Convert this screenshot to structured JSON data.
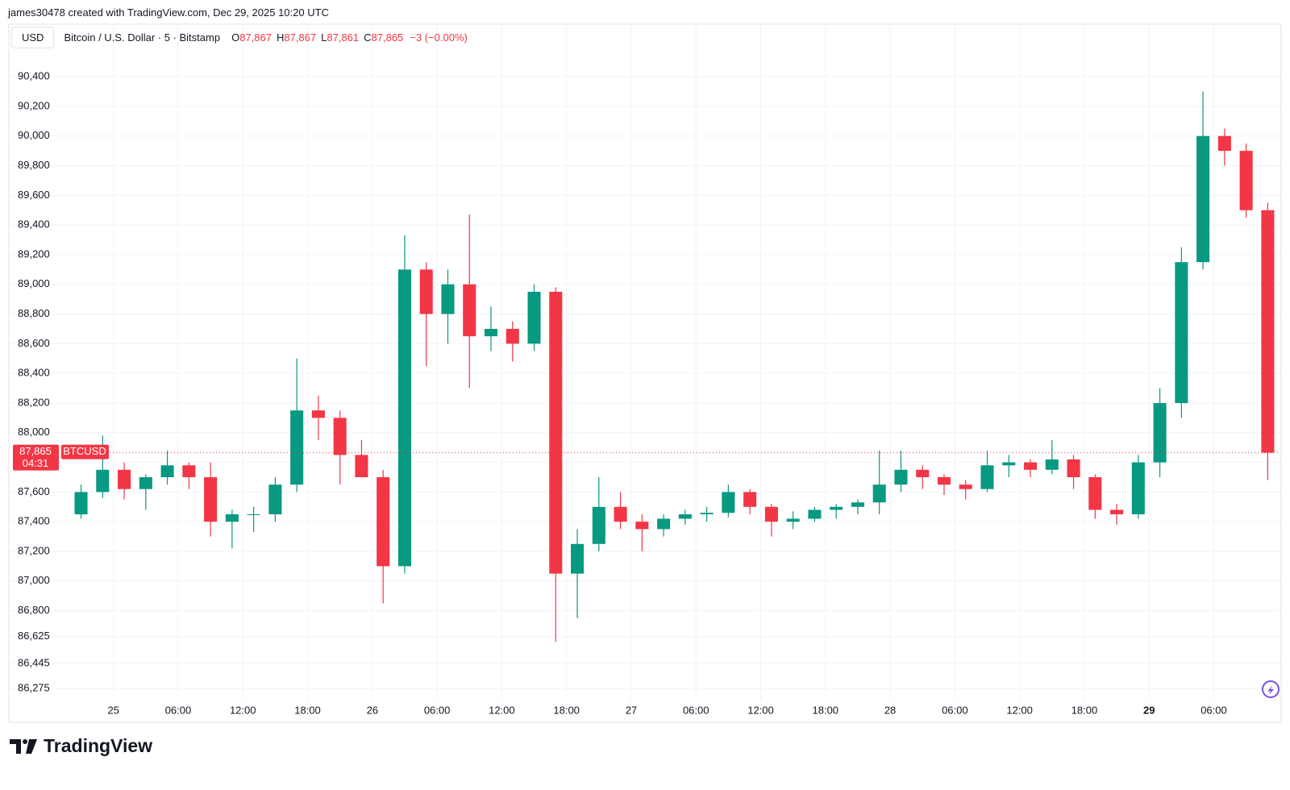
{
  "header": {
    "attribution": "james30478 created with TradingView.com, Dec 29, 2025 10:20 UTC",
    "currency": "USD",
    "symbol": "Bitcoin / U.S. Dollar · 5 · Bitstamp",
    "ohlc": [
      {
        "key": "O",
        "value": "87,867"
      },
      {
        "key": "H",
        "value": "87,867"
      },
      {
        "key": "L",
        "value": "87,861"
      },
      {
        "key": "C",
        "value": "87,865"
      }
    ],
    "change": "−3 (−0.00%)"
  },
  "chart_data": {
    "type": "candlestick",
    "up_color": "#089981",
    "down_color": "#f23645",
    "grid": true,
    "x": [
      "2025-12-24 20:00",
      "2025-12-24 22:00",
      "2025-12-25 00:00",
      "2025-12-25 02:00",
      "2025-12-25 04:00",
      "2025-12-25 06:00",
      "2025-12-25 08:00",
      "2025-12-25 10:00",
      "2025-12-25 12:00",
      "2025-12-25 14:00",
      "2025-12-25 16:00",
      "2025-12-25 18:00",
      "2025-12-25 20:00",
      "2025-12-25 22:00",
      "2025-12-26 00:00",
      "2025-12-26 02:00",
      "2025-12-26 04:00",
      "2025-12-26 06:00",
      "2025-12-26 08:00",
      "2025-12-26 10:00",
      "2025-12-26 12:00",
      "2025-12-26 14:00",
      "2025-12-26 16:00",
      "2025-12-26 18:00",
      "2025-12-26 20:00",
      "2025-12-26 22:00",
      "2025-12-27 00:00",
      "2025-12-27 02:00",
      "2025-12-27 04:00",
      "2025-12-27 06:00",
      "2025-12-27 08:00",
      "2025-12-27 10:00",
      "2025-12-27 12:00",
      "2025-12-27 14:00",
      "2025-12-27 16:00",
      "2025-12-27 18:00",
      "2025-12-27 20:00",
      "2025-12-27 22:00",
      "2025-12-28 00:00",
      "2025-12-28 02:00",
      "2025-12-28 04:00",
      "2025-12-28 06:00",
      "2025-12-28 08:00",
      "2025-12-28 10:00",
      "2025-12-28 12:00",
      "2025-12-28 14:00",
      "2025-12-28 16:00",
      "2025-12-28 18:00",
      "2025-12-28 20:00",
      "2025-12-28 22:00",
      "2025-12-29 00:00",
      "2025-12-29 02:00",
      "2025-12-29 04:00",
      "2025-12-29 06:00",
      "2025-12-29 08:00",
      "2025-12-29 10:00"
    ],
    "open": [
      87450,
      87600,
      87750,
      87620,
      87700,
      87780,
      87700,
      87400,
      87450,
      87450,
      87650,
      88150,
      88100,
      87850,
      87700,
      87100,
      89100,
      88800,
      89000,
      88650,
      88700,
      88600,
      88950,
      87050,
      87250,
      87500,
      87400,
      87350,
      87420,
      87450,
      87460,
      87600,
      87500,
      87400,
      87420,
      87480,
      87500,
      87530,
      87650,
      87750,
      87700,
      87650,
      87620,
      87780,
      87800,
      87750,
      87820,
      87700,
      87480,
      87450,
      87800,
      88200,
      89150,
      90000,
      89900,
      89500
    ],
    "high": [
      87650,
      87980,
      87800,
      87720,
      87880,
      87800,
      87800,
      87480,
      87500,
      87700,
      88500,
      88250,
      88150,
      87950,
      87750,
      89330,
      89150,
      89100,
      89470,
      88850,
      88750,
      89000,
      88980,
      87350,
      87700,
      87600,
      87450,
      87450,
      87480,
      87500,
      87650,
      87620,
      87520,
      87470,
      87500,
      87520,
      87550,
      87880,
      87880,
      87780,
      87720,
      87680,
      87880,
      87850,
      87820,
      87950,
      87850,
      87720,
      87520,
      87850,
      88300,
      89250,
      90300,
      90050,
      89950,
      89550
    ],
    "low": [
      87420,
      87560,
      87550,
      87480,
      87650,
      87620,
      87300,
      87220,
      87330,
      87400,
      87600,
      87950,
      87650,
      87700,
      86850,
      87050,
      88450,
      88600,
      88300,
      88550,
      88480,
      88550,
      86590,
      86750,
      87200,
      87350,
      87200,
      87300,
      87380,
      87400,
      87430,
      87450,
      87300,
      87350,
      87400,
      87420,
      87450,
      87450,
      87600,
      87620,
      87580,
      87550,
      87600,
      87700,
      87700,
      87720,
      87620,
      87420,
      87380,
      87420,
      87700,
      88100,
      89100,
      89800,
      89450,
      87680
    ],
    "close": [
      87600,
      87750,
      87620,
      87700,
      87780,
      87700,
      87400,
      87450,
      87450,
      87650,
      88150,
      88100,
      87850,
      87700,
      87100,
      89100,
      88800,
      89000,
      88650,
      88700,
      88600,
      88950,
      87050,
      87250,
      87500,
      87400,
      87350,
      87420,
      87450,
      87460,
      87600,
      87500,
      87400,
      87420,
      87480,
      87500,
      87530,
      87650,
      87750,
      87700,
      87650,
      87620,
      87780,
      87800,
      87750,
      87820,
      87700,
      87480,
      87450,
      87800,
      88200,
      89150,
      90000,
      89900,
      89500,
      87865
    ],
    "xlim": [
      "2025-12-24 19:10",
      "2025-12-29 12:10"
    ],
    "xticks": [
      {
        "value": "2025-12-25 00:00",
        "label": "25"
      },
      {
        "value": "2025-12-25 06:00",
        "label": "06:00"
      },
      {
        "value": "2025-12-25 12:00",
        "label": "12:00"
      },
      {
        "value": "2025-12-25 18:00",
        "label": "18:00"
      },
      {
        "value": "2025-12-26 00:00",
        "label": "26"
      },
      {
        "value": "2025-12-26 06:00",
        "label": "06:00"
      },
      {
        "value": "2025-12-26 12:00",
        "label": "12:00"
      },
      {
        "value": "2025-12-26 18:00",
        "label": "18:00"
      },
      {
        "value": "2025-12-27 00:00",
        "label": "27"
      },
      {
        "value": "2025-12-27 06:00",
        "label": "06:00"
      },
      {
        "value": "2025-12-27 12:00",
        "label": "12:00"
      },
      {
        "value": "2025-12-27 18:00",
        "label": "18:00"
      },
      {
        "value": "2025-12-28 00:00",
        "label": "28"
      },
      {
        "value": "2025-12-28 06:00",
        "label": "06:00"
      },
      {
        "value": "2025-12-28 12:00",
        "label": "12:00"
      },
      {
        "value": "2025-12-28 18:00",
        "label": "18:00"
      },
      {
        "value": "2025-12-29 00:00",
        "label": "29"
      },
      {
        "value": "2025-12-29 06:00",
        "label": "06:00"
      }
    ],
    "ylim": [
      86200,
      90580
    ],
    "yticks": [
      {
        "value": 90400,
        "label": "90,400"
      },
      {
        "value": 90200,
        "label": "90,200"
      },
      {
        "value": 90000,
        "label": "90,000"
      },
      {
        "value": 89800,
        "label": "89,800"
      },
      {
        "value": 89600,
        "label": "89,600"
      },
      {
        "value": 89400,
        "label": "89,400"
      },
      {
        "value": 89200,
        "label": "89,200"
      },
      {
        "value": 89000,
        "label": "89,000"
      },
      {
        "value": 88800,
        "label": "88,800"
      },
      {
        "value": 88600,
        "label": "88,600"
      },
      {
        "value": 88400,
        "label": "88,400"
      },
      {
        "value": 88200,
        "label": "88,200"
      },
      {
        "value": 88000,
        "label": "88,000"
      },
      {
        "value": 87800,
        "label": "87,800"
      },
      {
        "value": 87600,
        "label": "87,600"
      },
      {
        "value": 87400,
        "label": "87,400"
      },
      {
        "value": 87200,
        "label": "87,200"
      },
      {
        "value": 87000,
        "label": "87,000"
      },
      {
        "value": 86800,
        "label": "86,800"
      },
      {
        "value": 86625,
        "label": "86,625"
      },
      {
        "value": 86445,
        "label": "86,445"
      },
      {
        "value": 86275,
        "label": "86,275"
      }
    ],
    "last_price": {
      "value": 87865,
      "label": "87,865"
    },
    "countdown": "04:31",
    "ticker": "BTCUSD"
  },
  "footer": {
    "brand": "TradingView"
  }
}
